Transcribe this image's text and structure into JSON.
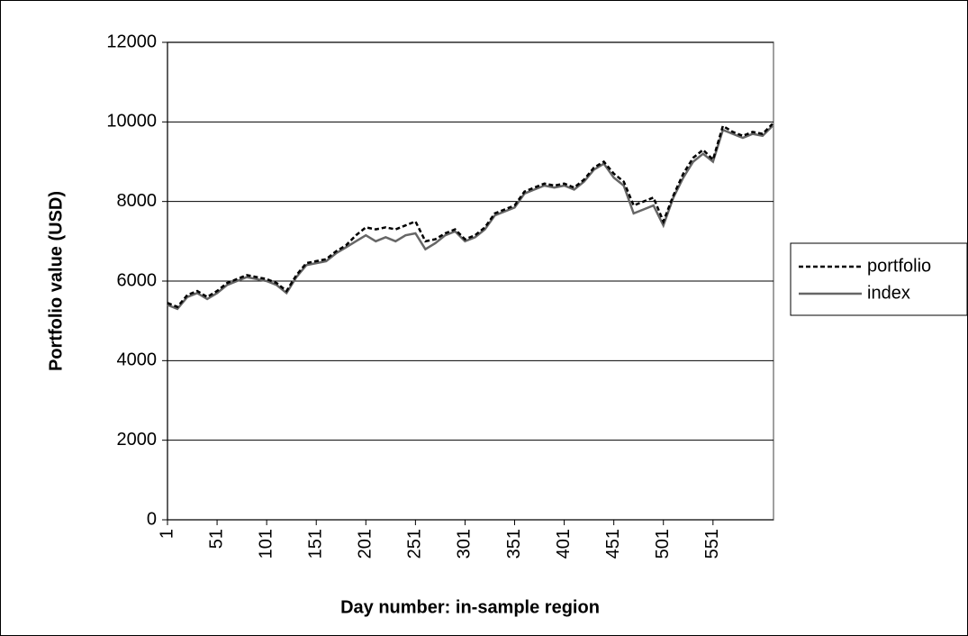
{
  "chart_data": {
    "type": "line",
    "y_label": "Portfolio value (USD)",
    "x_label": "Day number: in-sample region",
    "x": [
      1,
      11,
      21,
      31,
      41,
      51,
      61,
      71,
      81,
      91,
      101,
      111,
      121,
      131,
      141,
      151,
      161,
      171,
      181,
      191,
      201,
      211,
      221,
      231,
      241,
      251,
      261,
      271,
      281,
      291,
      301,
      311,
      321,
      331,
      341,
      351,
      361,
      371,
      381,
      391,
      401,
      411,
      421,
      431,
      441,
      451,
      461,
      471,
      481,
      491,
      501,
      511,
      521,
      531,
      541,
      551,
      561,
      571,
      581,
      591,
      601,
      611
    ],
    "series": [
      {
        "name": "portfolio",
        "color": "#000000",
        "dash": true,
        "values": [
          5450,
          5350,
          5650,
          5750,
          5600,
          5750,
          5950,
          6050,
          6150,
          6100,
          6050,
          5950,
          5750,
          6150,
          6450,
          6500,
          6550,
          6750,
          6900,
          7150,
          7350,
          7300,
          7350,
          7300,
          7400,
          7500,
          7000,
          7050,
          7200,
          7300,
          7050,
          7150,
          7350,
          7700,
          7800,
          7900,
          8250,
          8350,
          8450,
          8400,
          8450,
          8350,
          8550,
          8850,
          9000,
          8700,
          8500,
          7900,
          8000,
          8100,
          7500,
          8150,
          8700,
          9100,
          9300,
          9050,
          9900,
          9750,
          9650,
          9750,
          9700,
          9950
        ]
      },
      {
        "name": "index",
        "color": "#666666",
        "dash": false,
        "values": [
          5400,
          5300,
          5600,
          5700,
          5550,
          5700,
          5900,
          6000,
          6100,
          6050,
          6000,
          5900,
          5700,
          6100,
          6400,
          6450,
          6500,
          6700,
          6850,
          7000,
          7150,
          7000,
          7100,
          7000,
          7150,
          7200,
          6800,
          6950,
          7150,
          7250,
          7000,
          7100,
          7300,
          7650,
          7750,
          7850,
          8200,
          8300,
          8400,
          8350,
          8400,
          8300,
          8500,
          8800,
          8950,
          8600,
          8400,
          7700,
          7800,
          7900,
          7400,
          8100,
          8600,
          9000,
          9200,
          9000,
          9800,
          9700,
          9600,
          9700,
          9650,
          9900
        ]
      }
    ],
    "xlim": [
      1,
      612
    ],
    "xticks": [
      1,
      51,
      101,
      151,
      201,
      251,
      301,
      351,
      401,
      451,
      501,
      551
    ],
    "ylim": [
      0,
      12000
    ],
    "yticks": [
      0,
      2000,
      4000,
      6000,
      8000,
      10000,
      12000
    ],
    "grid": true,
    "legend": "right"
  }
}
